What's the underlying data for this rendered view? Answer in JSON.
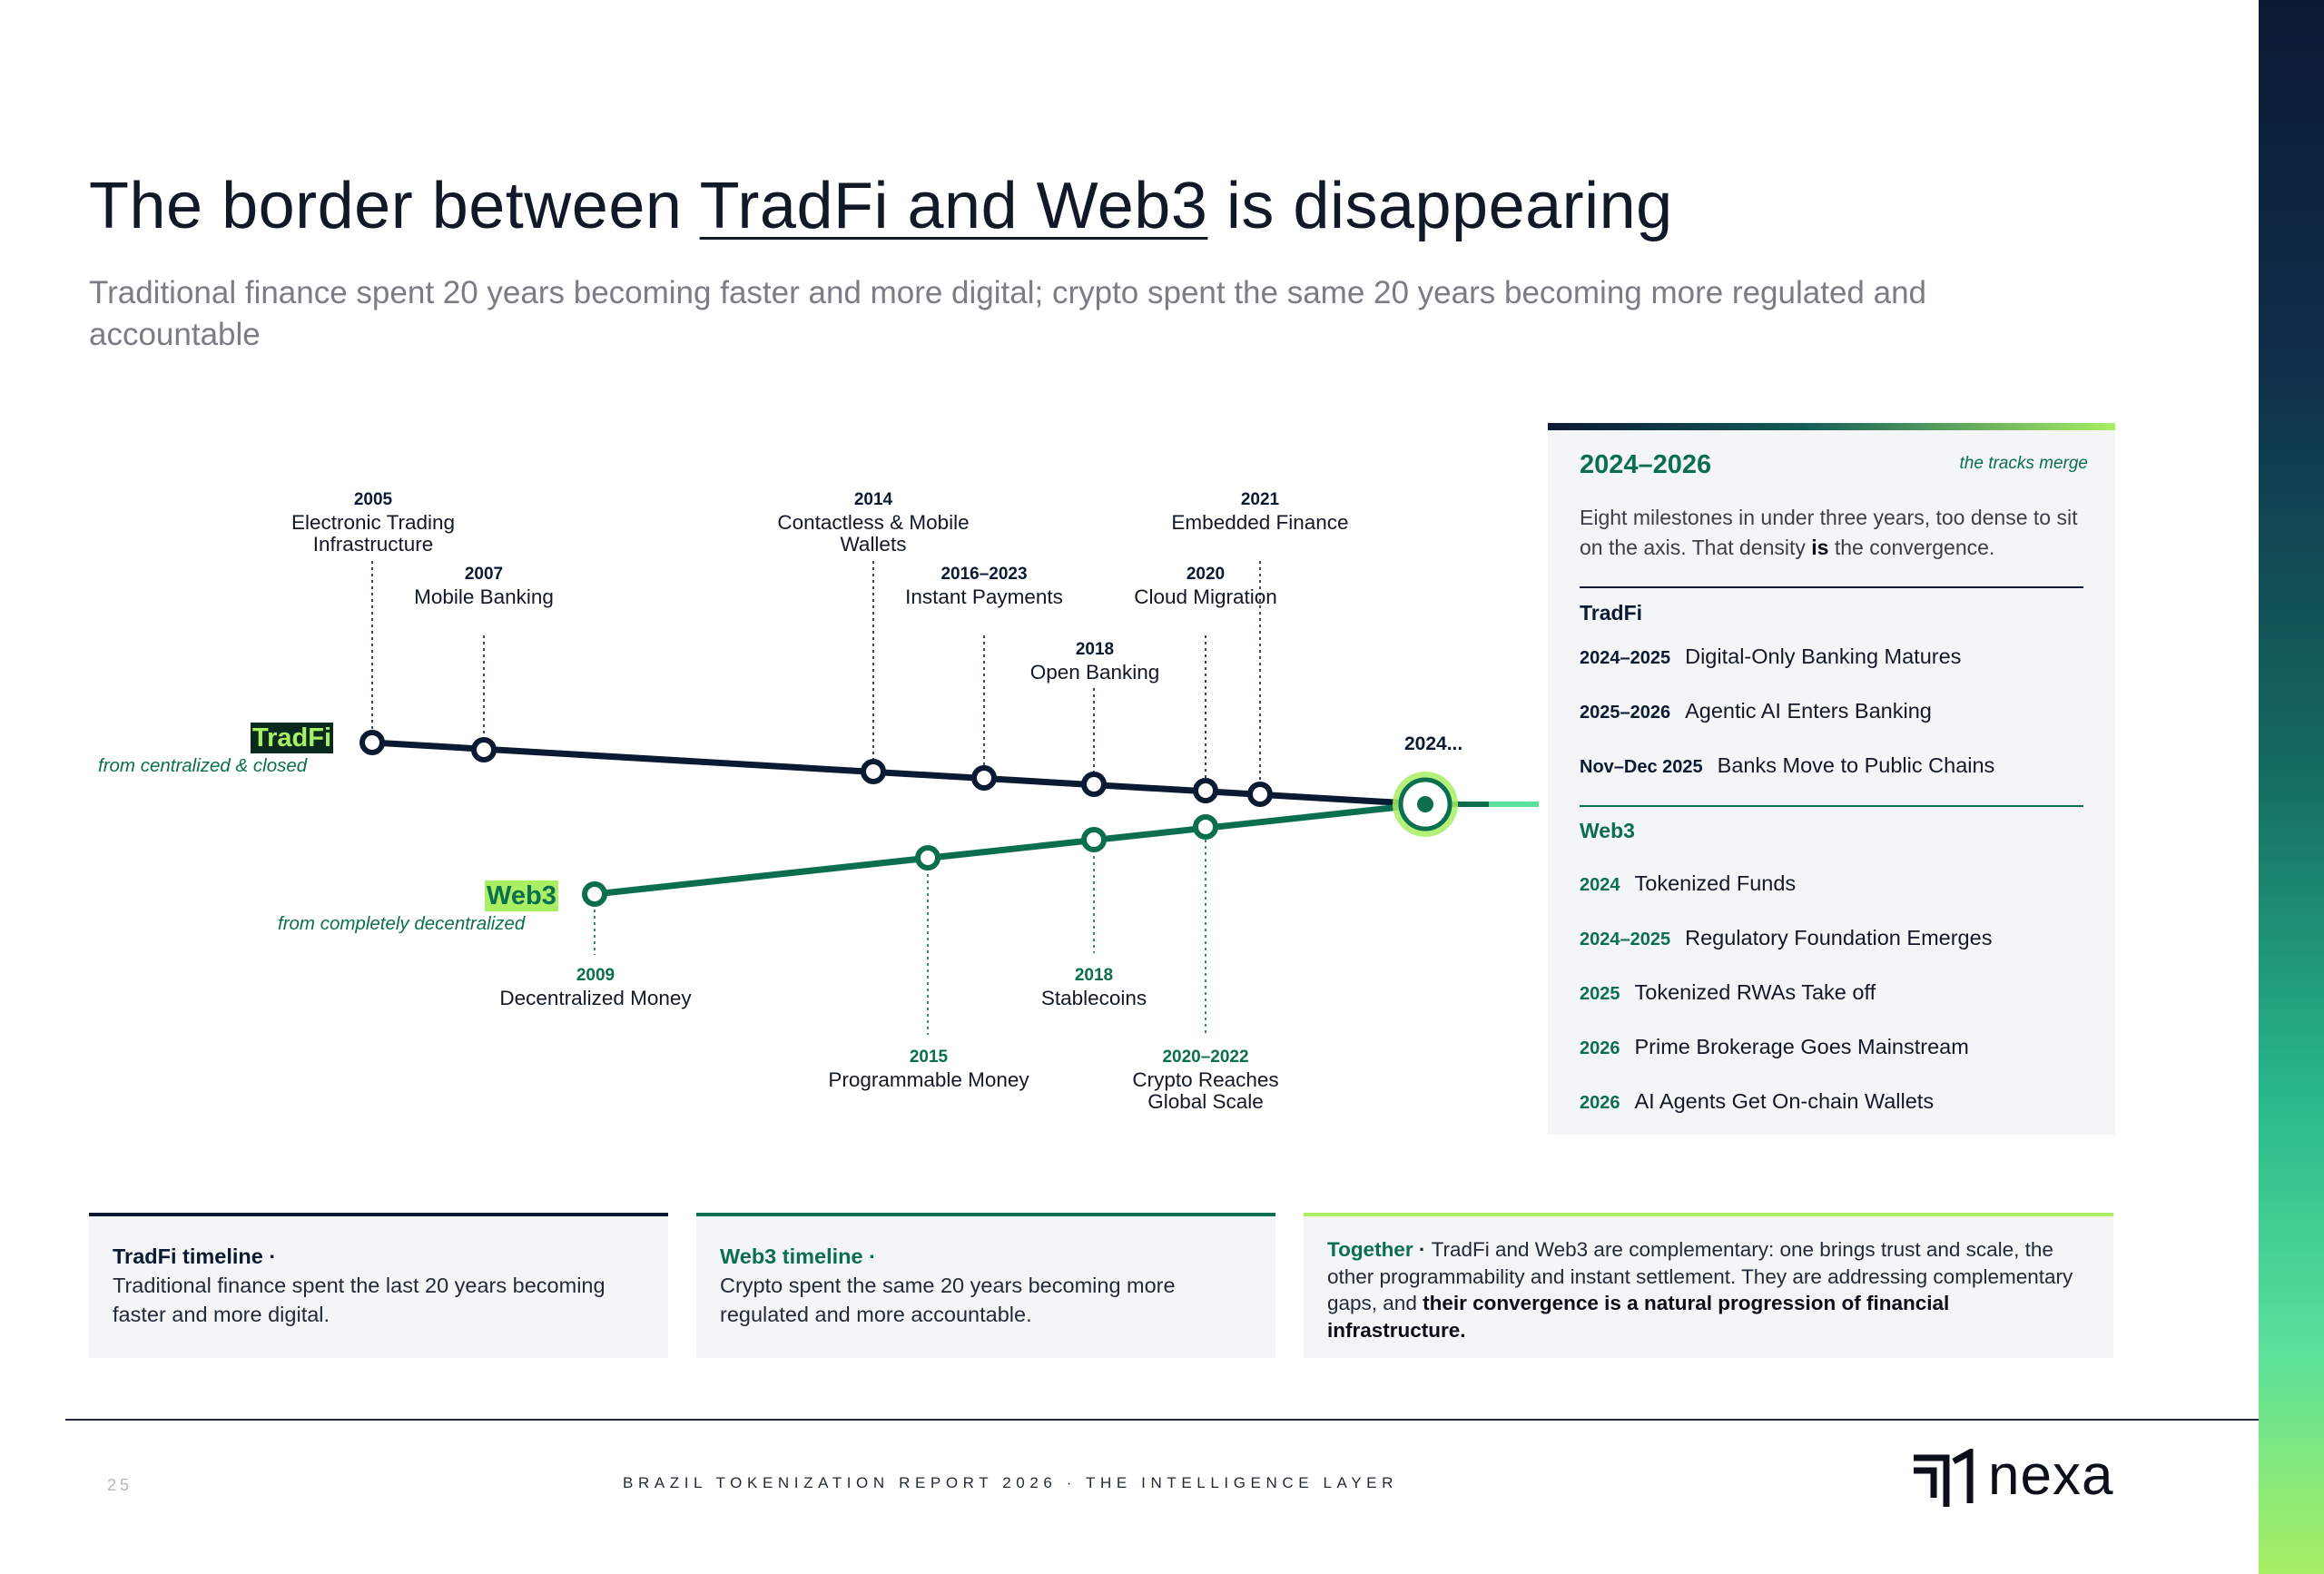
{
  "title": {
    "pre": "The border between ",
    "emphasis": "TradFi and Web3",
    "post": " is disappearing"
  },
  "subtitle": "Traditional finance spent 20 years becoming faster and more digital; crypto spent the same 20 years becoming more regulated and accountable",
  "timeline": {
    "tradfi_tag": "TradFi",
    "tradfi_sub": "from centralized & closed",
    "web3_tag": "Web3",
    "web3_sub": "from completely decentralized",
    "merge_label": "2024...",
    "tradfi_milestones": [
      {
        "year": "2005",
        "label_1": "Electronic Trading",
        "label_2": "Infrastructure"
      },
      {
        "year": "2007",
        "label_1": "Mobile Banking",
        "label_2": ""
      },
      {
        "year": "2014",
        "label_1": "Contactless & Mobile",
        "label_2": "Wallets"
      },
      {
        "year": "2016–2023",
        "label_1": "Instant Payments",
        "label_2": ""
      },
      {
        "year": "2018",
        "label_1": "Open Banking",
        "label_2": ""
      },
      {
        "year": "2020",
        "label_1": "Cloud Migration",
        "label_2": ""
      },
      {
        "year": "2021",
        "label_1": "Embedded Finance",
        "label_2": ""
      }
    ],
    "web3_milestones": [
      {
        "year": "2009",
        "label_1": "Decentralized Money",
        "label_2": ""
      },
      {
        "year": "2015",
        "label_1": "Programmable Money",
        "label_2": ""
      },
      {
        "year": "2018",
        "label_1": "Stablecoins",
        "label_2": ""
      },
      {
        "year": "2020–2022",
        "label_1": "Crypto Reaches",
        "label_2": "Global Scale"
      }
    ]
  },
  "panel": {
    "range": "2024–2026",
    "merge_note": "the tracks merge",
    "desc_pre": "Eight milestones in under three years, too dense to sit on the axis. That density ",
    "desc_bold": "is",
    "desc_post": " the convergence.",
    "tradfi_head": "TradFi",
    "tradfi_rows": [
      {
        "date": "2024–2025",
        "text": "Digital-Only Banking Matures"
      },
      {
        "date": "2025–2026",
        "text": "Agentic AI Enters Banking"
      },
      {
        "date": "Nov–Dec 2025",
        "text": "Banks Move to Public Chains"
      }
    ],
    "web3_head": "Web3",
    "web3_rows": [
      {
        "date": "2024",
        "text": "Tokenized Funds"
      },
      {
        "date": "2024–2025",
        "text": "Regulatory Foundation Emerges"
      },
      {
        "date": "2025",
        "text": "Tokenized RWAs Take off"
      },
      {
        "date": "2026",
        "text": "Prime Brokerage Goes Mainstream"
      },
      {
        "date": "2026",
        "text": "AI Agents Get On-chain Wallets"
      }
    ]
  },
  "cards": {
    "tradfi": {
      "head": "TradFi timeline ·",
      "body": "Traditional finance spent the last 20 years becoming faster and more digital."
    },
    "web3": {
      "head": "Web3 timeline ·",
      "body": "Crypto spent the same 20 years becoming more regulated and more accountable."
    },
    "together": {
      "head": "Together",
      "sep": " · ",
      "body": "TradFi and Web3 are complementary: one brings trust and scale, the other programmability and instant settlement. They are addressing complementary gaps, and ",
      "bold": "their convergence is a natural progression of financial infrastructure."
    }
  },
  "footer": {
    "page": "25",
    "text": "BRAZIL TOKENIZATION REPORT 2026 · THE INTELLIGENCE LAYER",
    "logo_word": "nexa"
  },
  "colors": {
    "navy": "#0b1a33",
    "green": "#0b6e4f",
    "lime": "#a8ef63"
  }
}
